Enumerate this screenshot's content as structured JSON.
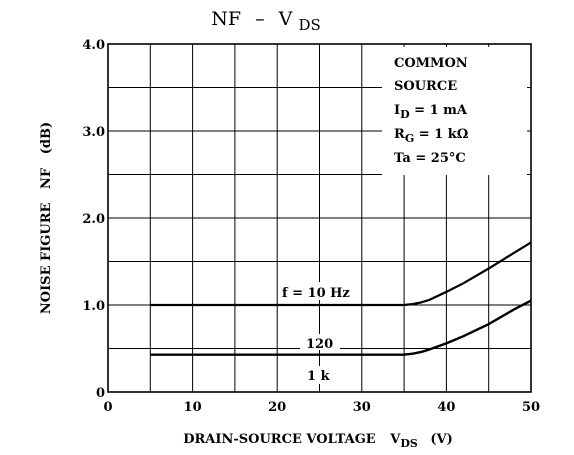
{
  "chart_data": {
    "type": "line",
    "title": {
      "main": "NF",
      "dash": "–",
      "var": "V",
      "sub": "DS"
    },
    "xlabel": {
      "main": "DRAIN-SOURCE VOLTAGE",
      "var": "V",
      "sub": "DS",
      "unit": "(V)"
    },
    "ylabel": "NOISE FIGURE   NF   (dB)",
    "xlim": [
      0,
      50
    ],
    "ylim": [
      0,
      4.0
    ],
    "xticks": [
      0,
      10,
      20,
      30,
      40,
      50
    ],
    "xtick_labels": [
      "0",
      "10",
      "20",
      "30",
      "40",
      "50"
    ],
    "yticks": [
      0,
      1.0,
      2.0,
      3.0,
      4.0
    ],
    "ytick_labels": [
      "0",
      "1.0",
      "2.0",
      "3.0",
      "4.0"
    ],
    "xgrid": [
      0,
      5,
      10,
      15,
      20,
      25,
      30,
      35,
      40,
      45,
      50
    ],
    "ygrid": [
      0,
      0.5,
      1.0,
      1.5,
      2.0,
      2.5,
      3.0,
      3.5,
      4.0
    ],
    "grid": true,
    "conditions": {
      "line1": "COMMON",
      "line2": "SOURCE",
      "id_var": "I",
      "id_sub": "D",
      "id_val": " = 1 mA",
      "rg_var": "R",
      "rg_sub": "G",
      "rg_val": " = 1 kΩ",
      "ta": "Ta = 25°C"
    },
    "series": [
      {
        "name": "f = 10 Hz",
        "x": [
          5,
          10,
          15,
          20,
          25,
          30,
          35,
          36,
          37,
          38,
          40,
          42,
          45,
          48,
          50
        ],
        "y": [
          1.0,
          1.0,
          1.0,
          1.0,
          1.0,
          1.0,
          1.0,
          1.01,
          1.03,
          1.06,
          1.15,
          1.25,
          1.42,
          1.6,
          1.72
        ]
      },
      {
        "name": "120",
        "x": [
          5,
          10,
          15,
          20,
          25,
          30,
          35,
          36,
          37,
          38,
          40,
          42,
          45,
          48,
          50
        ],
        "y": [
          0.43,
          0.43,
          0.43,
          0.43,
          0.43,
          0.43,
          0.43,
          0.44,
          0.46,
          0.49,
          0.56,
          0.64,
          0.78,
          0.95,
          1.05
        ]
      },
      {
        "name": "1 k",
        "x": [
          5,
          10,
          15,
          20,
          25,
          30,
          35,
          36,
          37,
          38,
          40,
          42,
          45,
          48,
          50
        ],
        "y": [
          0.43,
          0.43,
          0.43,
          0.43,
          0.43,
          0.43,
          0.43,
          0.44,
          0.46,
          0.49,
          0.56,
          0.64,
          0.78,
          0.95,
          1.05
        ]
      }
    ]
  }
}
